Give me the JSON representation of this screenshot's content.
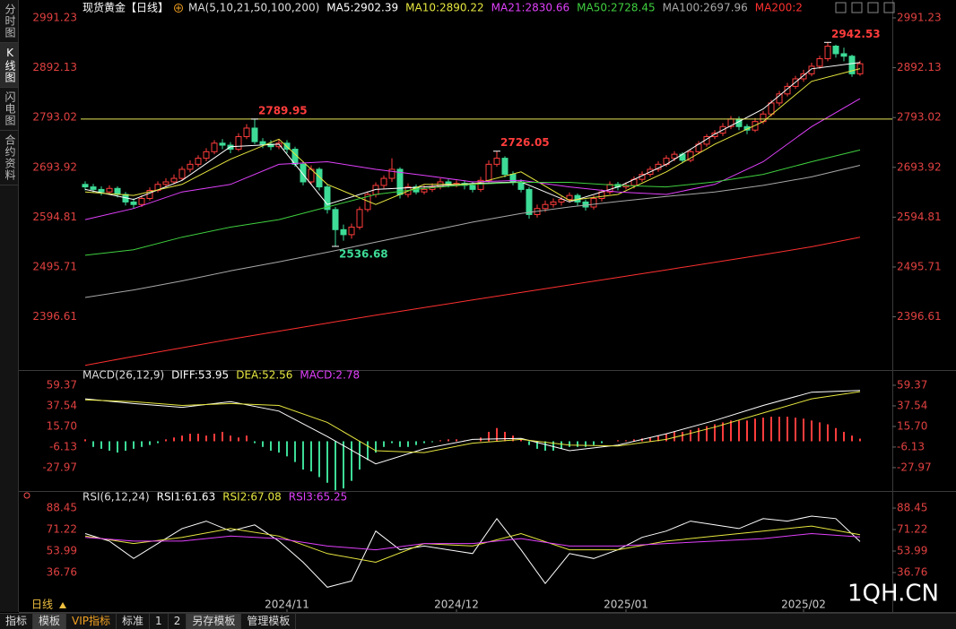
{
  "chart_data": [
    {
      "type": "candlestick",
      "title": "现货黄金【日线】",
      "ma_params": "MA(5,10,21,50,100,200)",
      "xlim": [
        0,
        96
      ],
      "ylim": [
        2296,
        3009
      ],
      "yticks": [
        2991.23,
        2892.13,
        2793.02,
        2693.92,
        2594.81,
        2495.71,
        2396.61
      ],
      "xticks": [
        {
          "value": 25,
          "label": "2024/11"
        },
        {
          "value": 46,
          "label": "2024/12"
        },
        {
          "value": 67,
          "label": "2025/01"
        },
        {
          "value": 89,
          "label": "2025/02"
        }
      ],
      "up_color": "#ff3c3c",
      "down_color": "#3ddc97",
      "open": [
        2660,
        2655,
        2650,
        2645,
        2652,
        2640,
        2625,
        2620,
        2632,
        2648,
        2660,
        2665,
        2672,
        2690,
        2700,
        2712,
        2725,
        2742,
        2738,
        2730,
        2755,
        2772,
        2745,
        2740,
        2735,
        2742,
        2730,
        2700,
        2665,
        2690,
        2655,
        2610,
        2570,
        2560,
        2575,
        2610,
        2640,
        2658,
        2672,
        2690,
        2640,
        2655,
        2645,
        2650,
        2655,
        2665,
        2660,
        2662,
        2658,
        2650,
        2668,
        2700,
        2712,
        2680,
        2665,
        2650,
        2600,
        2612,
        2620,
        2625,
        2630,
        2638,
        2625,
        2615,
        2632,
        2645,
        2660,
        2655,
        2658,
        2670,
        2680,
        2690,
        2700,
        2712,
        2720,
        2708,
        2725,
        2740,
        2755,
        2762,
        2775,
        2790,
        2775,
        2768,
        2785,
        2800,
        2822,
        2840,
        2855,
        2870,
        2880,
        2895,
        2910,
        2935,
        2920,
        2915,
        2880
      ],
      "high": [
        2666,
        2661,
        2656,
        2658,
        2656,
        2645,
        2632,
        2638,
        2654,
        2666,
        2672,
        2680,
        2696,
        2708,
        2718,
        2732,
        2748,
        2750,
        2744,
        2762,
        2780,
        2789.95,
        2752,
        2748,
        2750,
        2748,
        2735,
        2706,
        2698,
        2694,
        2660,
        2615,
        2580,
        2582,
        2616,
        2646,
        2664,
        2678,
        2712,
        2694,
        2662,
        2660,
        2658,
        2662,
        2672,
        2670,
        2668,
        2668,
        2664,
        2675,
        2708,
        2726.05,
        2716,
        2686,
        2670,
        2655,
        2620,
        2628,
        2632,
        2636,
        2644,
        2642,
        2630,
        2638,
        2650,
        2666,
        2665,
        2664,
        2676,
        2686,
        2696,
        2706,
        2718,
        2726,
        2724,
        2730,
        2746,
        2760,
        2768,
        2782,
        2796,
        2795,
        2780,
        2792,
        2806,
        2828,
        2846,
        2862,
        2876,
        2888,
        2902,
        2916,
        2942.53,
        2938,
        2932,
        2918,
        2906
      ],
      "low": [
        2648,
        2644,
        2638,
        2640,
        2634,
        2618,
        2612,
        2615,
        2628,
        2644,
        2655,
        2660,
        2668,
        2684,
        2695,
        2706,
        2720,
        2730,
        2722,
        2726,
        2750,
        2740,
        2732,
        2728,
        2730,
        2722,
        2695,
        2658,
        2660,
        2648,
        2602,
        2536.68,
        2548,
        2552,
        2570,
        2605,
        2634,
        2652,
        2665,
        2632,
        2634,
        2640,
        2640,
        2645,
        2650,
        2654,
        2654,
        2650,
        2644,
        2645,
        2664,
        2695,
        2674,
        2658,
        2644,
        2592,
        2594,
        2605,
        2614,
        2618,
        2624,
        2618,
        2608,
        2610,
        2626,
        2640,
        2648,
        2650,
        2652,
        2665,
        2675,
        2685,
        2695,
        2706,
        2702,
        2704,
        2720,
        2735,
        2750,
        2756,
        2770,
        2768,
        2760,
        2764,
        2780,
        2795,
        2816,
        2835,
        2850,
        2864,
        2875,
        2890,
        2905,
        2912,
        2905,
        2874,
        2876
      ],
      "close": [
        2655,
        2650,
        2645,
        2652,
        2640,
        2625,
        2620,
        2632,
        2648,
        2660,
        2665,
        2672,
        2690,
        2700,
        2712,
        2725,
        2742,
        2738,
        2730,
        2755,
        2772,
        2745,
        2740,
        2735,
        2742,
        2730,
        2700,
        2665,
        2690,
        2655,
        2610,
        2570,
        2560,
        2575,
        2610,
        2640,
        2658,
        2672,
        2690,
        2640,
        2655,
        2645,
        2650,
        2655,
        2665,
        2660,
        2662,
        2658,
        2650,
        2668,
        2700,
        2712,
        2680,
        2665,
        2650,
        2600,
        2612,
        2620,
        2625,
        2630,
        2638,
        2625,
        2615,
        2632,
        2645,
        2660,
        2655,
        2658,
        2670,
        2680,
        2690,
        2700,
        2712,
        2720,
        2708,
        2725,
        2740,
        2755,
        2762,
        2775,
        2790,
        2775,
        2768,
        2785,
        2800,
        2822,
        2840,
        2855,
        2870,
        2880,
        2895,
        2910,
        2935,
        2920,
        2915,
        2880,
        2900
      ],
      "hline": {
        "value": 2789.95,
        "color": "#e8e85a"
      },
      "annotations": [
        {
          "x": 21,
          "y": 2789.95
        },
        {
          "x": 31,
          "y": 2536.68
        },
        {
          "x": 51,
          "y": 2726.05
        },
        {
          "x": 92,
          "y": 2942.53
        }
      ],
      "series": [
        {
          "name": "MA5:2902.39",
          "color": "#ffffff",
          "x": [
            0,
            6,
            12,
            18,
            24,
            30,
            36,
            42,
            48,
            54,
            60,
            66,
            72,
            78,
            84,
            90,
            96
          ],
          "values": [
            2650,
            2630,
            2668,
            2735,
            2740,
            2620,
            2650,
            2655,
            2662,
            2665,
            2625,
            2655,
            2700,
            2760,
            2810,
            2890,
            2902.39
          ]
        },
        {
          "name": "MA10:2890.22",
          "color": "#e6e640",
          "x": [
            0,
            6,
            12,
            18,
            24,
            30,
            36,
            42,
            48,
            54,
            60,
            66,
            72,
            78,
            84,
            90,
            96
          ],
          "values": [
            2645,
            2638,
            2660,
            2710,
            2750,
            2660,
            2620,
            2660,
            2660,
            2685,
            2628,
            2640,
            2685,
            2740,
            2785,
            2865,
            2890.22
          ]
        },
        {
          "name": "MA21:2830.66",
          "color": "#e040fb",
          "x": [
            0,
            6,
            12,
            18,
            24,
            30,
            36,
            42,
            48,
            54,
            60,
            66,
            72,
            78,
            84,
            90,
            96
          ],
          "values": [
            2590,
            2612,
            2645,
            2660,
            2700,
            2705,
            2690,
            2678,
            2665,
            2668,
            2655,
            2645,
            2640,
            2660,
            2705,
            2775,
            2830.66
          ]
        },
        {
          "name": "MA50:2728.45",
          "color": "#3fcf3f",
          "x": [
            0,
            6,
            12,
            18,
            24,
            30,
            36,
            42,
            48,
            54,
            60,
            66,
            72,
            78,
            84,
            90,
            96
          ],
          "values": [
            2519,
            2530,
            2555,
            2575,
            2590,
            2615,
            2640,
            2652,
            2660,
            2664,
            2664,
            2658,
            2655,
            2665,
            2680,
            2705,
            2728.45
          ]
        },
        {
          "name": "MA100:2697.96",
          "color": "#a8a8a8",
          "x": [
            0,
            6,
            12,
            18,
            24,
            30,
            36,
            42,
            48,
            54,
            60,
            66,
            72,
            78,
            84,
            90,
            96
          ],
          "values": [
            2435,
            2450,
            2468,
            2488,
            2506,
            2525,
            2545,
            2565,
            2585,
            2602,
            2615,
            2626,
            2636,
            2645,
            2658,
            2675,
            2697.96
          ]
        },
        {
          "name": "MA200:2",
          "color": "#ff3030",
          "x": [
            0,
            6,
            12,
            18,
            24,
            30,
            36,
            42,
            48,
            54,
            60,
            66,
            72,
            78,
            84,
            90,
            96
          ],
          "values": [
            2300,
            2318,
            2335,
            2352,
            2368,
            2384,
            2400,
            2415,
            2430,
            2445,
            2460,
            2475,
            2490,
            2505,
            2520,
            2536,
            2555
          ]
        }
      ]
    },
    {
      "type": "combo",
      "title": "MACD(26,12,9)",
      "xlim": [
        0,
        96
      ],
      "ylim": [
        -49.9,
        64.1
      ],
      "yticks": [
        59.37,
        37.54,
        {
          "value": 15.7,
          "label": "15.70"
        },
        -6.13,
        -27.97
      ],
      "histogram": {
        "name": "MACD:2.78",
        "color": "#e040fb",
        "up_color": "#ff3c3c",
        "down_color": "#3ddc97",
        "values": [
          2,
          -6,
          -8,
          -10,
          -12,
          -10,
          -8,
          -6,
          -4,
          -2,
          2,
          4,
          6,
          8,
          8,
          6,
          8,
          10,
          6,
          4,
          6,
          -2,
          -6,
          -10,
          -12,
          -16,
          -22,
          -30,
          -32,
          -38,
          -44,
          -52,
          -50,
          -42,
          -30,
          -20,
          -12,
          -6,
          -2,
          -6,
          -6,
          -4,
          -2,
          -1,
          1,
          2,
          2,
          1,
          0,
          4,
          10,
          14,
          10,
          6,
          2,
          -4,
          -8,
          -10,
          -10,
          -8,
          -6,
          -6,
          -6,
          -4,
          -2,
          0,
          1,
          1,
          2,
          3,
          4,
          6,
          8,
          10,
          10,
          12,
          14,
          16,
          18,
          20,
          22,
          22,
          22,
          24,
          25,
          26,
          26,
          26,
          25,
          24,
          22,
          20,
          18,
          14,
          10,
          6,
          2.78
        ]
      },
      "series": [
        {
          "name": "DIFF:53.95",
          "color": "#ffffff",
          "x": [
            0,
            6,
            12,
            18,
            24,
            30,
            36,
            42,
            48,
            54,
            60,
            66,
            72,
            78,
            84,
            90,
            96
          ],
          "values": [
            45,
            40,
            36,
            42,
            32,
            5,
            -24,
            -8,
            2,
            3,
            -10,
            -4,
            8,
            22,
            38,
            52,
            53.95
          ]
        },
        {
          "name": "DEA:52.56",
          "color": "#e6e640",
          "x": [
            0,
            6,
            12,
            18,
            24,
            30,
            36,
            42,
            48,
            54,
            60,
            66,
            72,
            78,
            84,
            90,
            96
          ],
          "values": [
            44,
            42,
            38,
            40,
            38,
            20,
            -10,
            -12,
            -2,
            2,
            -4,
            -5,
            2,
            15,
            30,
            45,
            52.56
          ]
        }
      ]
    },
    {
      "type": "line",
      "title": "RSI(6,12,24)",
      "xlim": [
        0,
        96
      ],
      "ylim": [
        7.3,
        93.5
      ],
      "yticks": [
        88.45,
        71.22,
        53.99,
        36.76
      ],
      "series": [
        {
          "name": "RSI1:61.63",
          "color": "#ffffff",
          "x": [
            0,
            3,
            6,
            9,
            12,
            15,
            18,
            21,
            24,
            27,
            30,
            33,
            36,
            39,
            42,
            45,
            48,
            51,
            54,
            57,
            60,
            63,
            66,
            69,
            72,
            75,
            78,
            81,
            84,
            87,
            90,
            93,
            96
          ],
          "values": [
            68,
            62,
            48,
            60,
            72,
            78,
            70,
            75,
            62,
            45,
            25,
            30,
            70,
            55,
            58,
            55,
            52,
            80,
            55,
            28,
            52,
            48,
            55,
            65,
            70,
            78,
            75,
            72,
            80,
            78,
            82,
            80,
            61.63
          ]
        },
        {
          "name": "RSI2:67.08",
          "color": "#e6e640",
          "x": [
            0,
            6,
            12,
            18,
            24,
            30,
            36,
            42,
            48,
            54,
            60,
            66,
            72,
            78,
            84,
            90,
            96
          ],
          "values": [
            66,
            60,
            65,
            72,
            66,
            52,
            45,
            60,
            58,
            68,
            55,
            55,
            62,
            66,
            70,
            74,
            67.08
          ]
        },
        {
          "name": "RSI3:65.25",
          "color": "#e040fb",
          "x": [
            0,
            6,
            12,
            18,
            24,
            30,
            36,
            42,
            48,
            54,
            60,
            66,
            72,
            78,
            84,
            90,
            96
          ],
          "values": [
            65,
            62,
            62,
            66,
            64,
            58,
            55,
            60,
            60,
            64,
            58,
            58,
            60,
            62,
            64,
            68,
            65.25
          ]
        }
      ]
    }
  ],
  "ui": {
    "tabs": [
      "分时图",
      "K线图",
      "闪电图",
      "合约资料"
    ],
    "period": "日线",
    "watermark": "1QH.CN",
    "toolbar": [
      "指标",
      "模板",
      "VIP指标",
      "标准",
      "1",
      "2",
      "另存模板",
      "管理模板"
    ]
  }
}
